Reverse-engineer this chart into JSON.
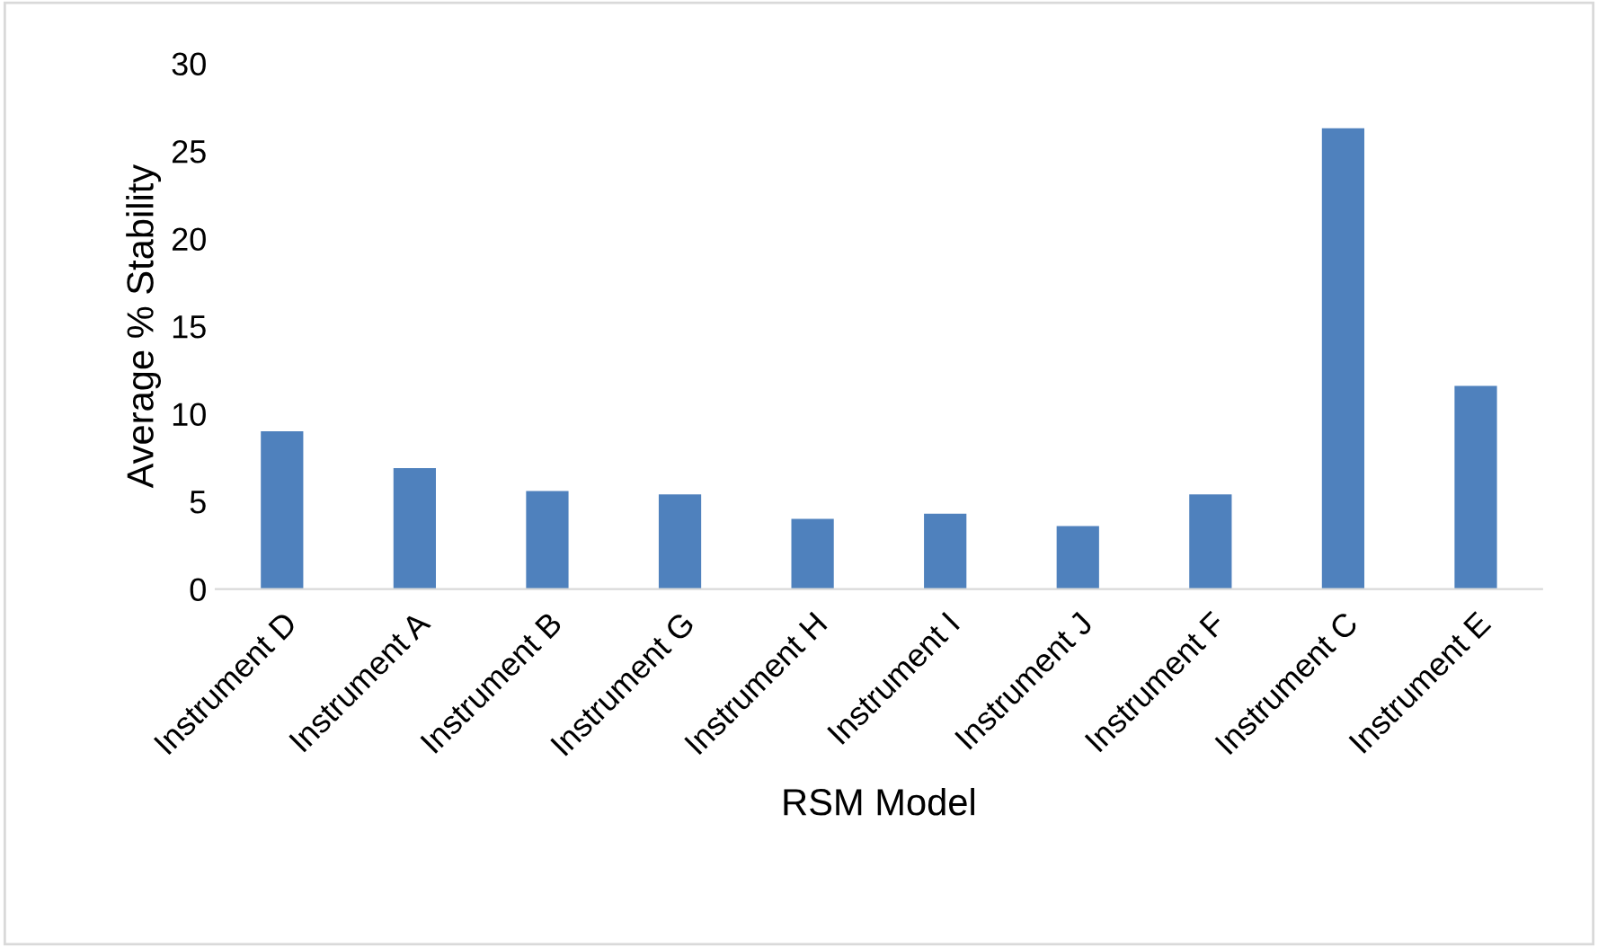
{
  "chart_data": {
    "type": "bar",
    "xlabel": "RSM Model",
    "ylabel": "Average % Stability",
    "categories": [
      "Instrument D",
      "Instrument A",
      "Instrument B",
      "Instrument G",
      "Instrument H",
      "Instrument I",
      "Instrument J",
      "Instrument F",
      "Instrument C",
      "Instrument E"
    ],
    "values": [
      9.0,
      6.9,
      5.6,
      5.4,
      4.0,
      4.3,
      3.6,
      5.4,
      26.3,
      11.6
    ],
    "color": "#4f81bd",
    "ylim": [
      0,
      30
    ],
    "yticks": [
      0,
      5,
      10,
      15,
      20,
      25,
      30
    ],
    "grid": false
  }
}
